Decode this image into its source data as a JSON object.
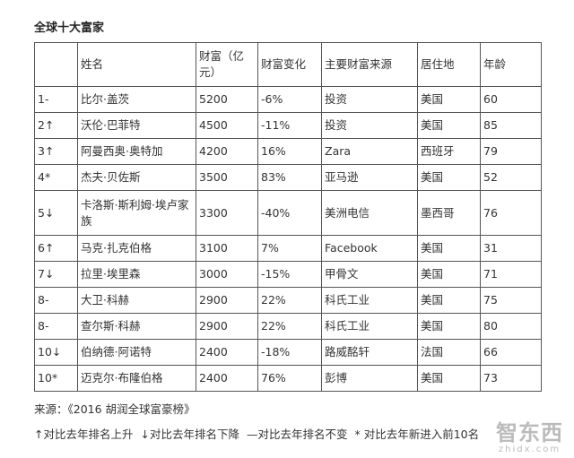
{
  "header": {
    "title": "全球十大富家"
  },
  "table": {
    "columns": [
      "",
      "姓名",
      "财富（亿元）",
      "财富变化",
      "主要财富来源",
      "居住地",
      "年龄"
    ],
    "rows": [
      [
        "1-",
        "比尔·盖茨",
        5200,
        "-6%",
        "投资",
        "美国",
        60
      ],
      [
        "2↑",
        "沃伦·巴菲特",
        4500,
        "-11%",
        "投资",
        "美国",
        85
      ],
      [
        "3↑",
        "阿曼西奥·奥特加",
        4200,
        "16%",
        "Zara",
        "西班牙",
        79
      ],
      [
        "4*",
        "杰夫·贝佐斯",
        3500,
        "83%",
        "亚马逊",
        "美国",
        52
      ],
      [
        "5↓",
        "卡洛斯·斯利姆·埃卢家族",
        3300,
        "-40%",
        "美洲电信",
        "墨西哥",
        76
      ],
      [
        "6↑",
        "马克·扎克伯格",
        3100,
        "7%",
        "Facebook",
        "美国",
        31
      ],
      [
        "7↓",
        "拉里·埃里森",
        3000,
        "-15%",
        "甲骨文",
        "美国",
        71
      ],
      [
        "8-",
        "大卫·科赫",
        2900,
        "22%",
        "科氏工业",
        "美国",
        75
      ],
      [
        "8-",
        "查尔斯·科赫",
        2900,
        "22%",
        "科氏工业",
        "美国",
        80
      ],
      [
        "10↓",
        "伯纳德·阿诺特",
        2400,
        "-18%",
        "路威酩轩",
        "法国",
        66
      ],
      [
        "10*",
        "迈克尔·布隆伯格",
        2400,
        "76%",
        "彭博",
        "美国",
        73
      ]
    ]
  },
  "footer": {
    "source": "来源：《2016 胡润全球富豪榜》",
    "legend": [
      "↑对比去年排名上升",
      "↓对比去年排名下降",
      "—对比去年排名不变",
      "* 对比去年新进入前10名"
    ]
  },
  "watermark": {
    "name": "智东西",
    "url": "zhidx.com"
  }
}
